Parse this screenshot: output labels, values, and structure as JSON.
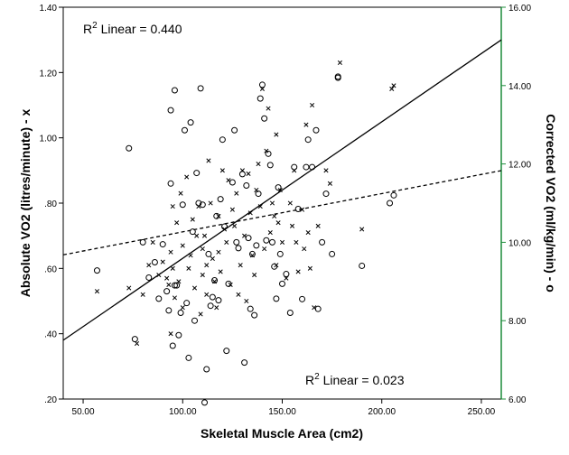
{
  "chart_data": {
    "type": "scatter",
    "xlabel": "Skeletal Muscle Area (cm2)",
    "ylabel_left": "Absolute VO2 (litres/minute) - x",
    "ylabel_right": "Corrected VO2 (ml/kg/min) - o",
    "xlim": [
      40,
      260
    ],
    "ylim_left": [
      0.2,
      1.4
    ],
    "ylim_right": [
      6.0,
      16.0
    ],
    "x_ticks": [
      "50.00",
      "100.00",
      "150.00",
      "200.00",
      "250.00"
    ],
    "x_tick_values": [
      50,
      100,
      150,
      200,
      250
    ],
    "y_left_ticks": [
      ".20",
      ".40",
      ".60",
      ".80",
      "1.00",
      "1.20",
      "1.40"
    ],
    "y_left_tick_values": [
      0.2,
      0.4,
      0.6,
      0.8,
      1.0,
      1.2,
      1.4
    ],
    "y_right_ticks": [
      "6.00",
      "8.00",
      "10.00",
      "12.00",
      "14.00",
      "16.00"
    ],
    "y_right_tick_values": [
      6,
      8,
      10,
      12,
      14,
      16
    ],
    "annotations": {
      "left_r2": {
        "prefix": "R",
        "sup": "2",
        "text": " Linear = 0.440"
      },
      "right_r2": {
        "prefix": "R",
        "sup": "2",
        "text": " Linear = 0.023"
      }
    },
    "colors": {
      "left_axis": "#000000",
      "right_axis": "#1c8c3a",
      "marks": "#000000"
    },
    "series": [
      {
        "name": "Absolute VO2 (litres/minute)",
        "marker": "x",
        "axis": "left",
        "fit_line": {
          "style": "solid",
          "x": [
            40,
            260
          ],
          "y": [
            0.38,
            1.3
          ]
        },
        "points": [
          [
            57,
            0.53
          ],
          [
            73,
            0.54
          ],
          [
            77,
            0.37
          ],
          [
            80,
            0.52
          ],
          [
            83,
            0.61
          ],
          [
            85,
            0.68
          ],
          [
            88,
            0.58
          ],
          [
            90,
            0.62
          ],
          [
            92,
            0.57
          ],
          [
            93,
            0.55
          ],
          [
            94,
            0.65
          ],
          [
            94,
            0.4
          ],
          [
            95,
            0.79
          ],
          [
            95,
            0.6
          ],
          [
            96,
            0.51
          ],
          [
            97,
            0.74
          ],
          [
            98,
            0.56
          ],
          [
            99,
            0.83
          ],
          [
            100,
            0.67
          ],
          [
            100,
            0.48
          ],
          [
            102,
            0.88
          ],
          [
            103,
            0.6
          ],
          [
            104,
            0.64
          ],
          [
            105,
            0.75
          ],
          [
            106,
            0.54
          ],
          [
            107,
            0.7
          ],
          [
            108,
            0.79
          ],
          [
            109,
            0.46
          ],
          [
            110,
            0.58
          ],
          [
            110,
            0.66
          ],
          [
            111,
            0.7
          ],
          [
            112,
            0.61
          ],
          [
            112,
            0.52
          ],
          [
            113,
            0.93
          ],
          [
            114,
            0.8
          ],
          [
            115,
            0.63
          ],
          [
            116,
            0.56
          ],
          [
            117,
            0.48
          ],
          [
            118,
            0.76
          ],
          [
            118,
            0.65
          ],
          [
            119,
            0.59
          ],
          [
            120,
            0.9
          ],
          [
            121,
            0.72
          ],
          [
            122,
            0.68
          ],
          [
            123,
            0.87
          ],
          [
            124,
            0.55
          ],
          [
            125,
            0.78
          ],
          [
            126,
            0.73
          ],
          [
            127,
            0.83
          ],
          [
            128,
            0.52
          ],
          [
            129,
            0.61
          ],
          [
            130,
            0.9
          ],
          [
            131,
            0.7
          ],
          [
            132,
            0.5
          ],
          [
            133,
            0.89
          ],
          [
            134,
            0.77
          ],
          [
            135,
            0.64
          ],
          [
            136,
            0.58
          ],
          [
            137,
            0.84
          ],
          [
            138,
            0.92
          ],
          [
            139,
            0.79
          ],
          [
            140,
            1.15
          ],
          [
            141,
            0.66
          ],
          [
            142,
            0.96
          ],
          [
            143,
            1.09
          ],
          [
            144,
            0.71
          ],
          [
            145,
            0.8
          ],
          [
            146,
            0.76
          ],
          [
            147,
            0.61
          ],
          [
            147,
            1.01
          ],
          [
            148,
            0.74
          ],
          [
            149,
            0.84
          ],
          [
            150,
            0.68
          ],
          [
            152,
            0.57
          ],
          [
            154,
            0.8
          ],
          [
            155,
            0.73
          ],
          [
            156,
            0.9
          ],
          [
            157,
            0.68
          ],
          [
            158,
            0.59
          ],
          [
            160,
            0.78
          ],
          [
            161,
            0.66
          ],
          [
            162,
            1.04
          ],
          [
            163,
            0.71
          ],
          [
            164,
            0.6
          ],
          [
            165,
            1.1
          ],
          [
            166,
            0.48
          ],
          [
            168,
            0.73
          ],
          [
            172,
            0.9
          ],
          [
            174,
            0.86
          ],
          [
            179,
            1.23
          ],
          [
            190,
            0.72
          ],
          [
            205,
            1.15
          ],
          [
            206,
            1.16
          ]
        ]
      },
      {
        "name": "Corrected VO2 (ml/kg/min)",
        "marker": "o",
        "axis": "right",
        "fit_line": {
          "style": "dashed",
          "x": [
            40,
            260
          ],
          "y": [
            9.68,
            11.83
          ]
        },
        "points": [
          [
            57,
            9.28
          ],
          [
            73,
            12.4
          ],
          [
            76,
            7.53
          ],
          [
            80,
            10.0
          ],
          [
            83,
            9.1
          ],
          [
            86,
            9.49
          ],
          [
            88,
            8.56
          ],
          [
            90,
            9.95
          ],
          [
            92,
            8.75
          ],
          [
            93,
            8.26
          ],
          [
            94,
            13.37
          ],
          [
            94,
            11.5
          ],
          [
            95,
            7.36
          ],
          [
            96,
            13.88
          ],
          [
            96,
            8.9
          ],
          [
            97,
            8.9
          ],
          [
            98,
            7.63
          ],
          [
            99,
            8.2
          ],
          [
            100,
            10.96
          ],
          [
            101,
            12.86
          ],
          [
            102,
            8.45
          ],
          [
            103,
            7.05
          ],
          [
            104,
            13.06
          ],
          [
            105,
            10.27
          ],
          [
            106,
            8.0
          ],
          [
            107,
            11.77
          ],
          [
            108,
            11.0
          ],
          [
            109,
            13.93
          ],
          [
            110,
            10.96
          ],
          [
            111,
            5.91
          ],
          [
            112,
            6.76
          ],
          [
            113,
            9.7
          ],
          [
            114,
            8.38
          ],
          [
            115,
            8.6
          ],
          [
            116,
            9.03
          ],
          [
            117,
            10.67
          ],
          [
            118,
            8.52
          ],
          [
            119,
            11.1
          ],
          [
            120,
            12.62
          ],
          [
            121,
            10.4
          ],
          [
            122,
            7.23
          ],
          [
            123,
            8.94
          ],
          [
            125,
            11.53
          ],
          [
            126,
            12.86
          ],
          [
            127,
            10.0
          ],
          [
            128,
            9.85
          ],
          [
            130,
            11.74
          ],
          [
            131,
            6.93
          ],
          [
            132,
            11.45
          ],
          [
            133,
            10.11
          ],
          [
            134,
            8.3
          ],
          [
            135,
            9.7
          ],
          [
            136,
            8.14
          ],
          [
            137,
            9.92
          ],
          [
            138,
            11.24
          ],
          [
            139,
            13.67
          ],
          [
            140,
            14.02
          ],
          [
            141,
            13.16
          ],
          [
            142,
            10.05
          ],
          [
            143,
            12.26
          ],
          [
            144,
            11.97
          ],
          [
            145,
            10.0
          ],
          [
            146,
            9.38
          ],
          [
            147,
            8.56
          ],
          [
            148,
            11.4
          ],
          [
            149,
            9.7
          ],
          [
            150,
            8.94
          ],
          [
            152,
            9.19
          ],
          [
            154,
            8.2
          ],
          [
            156,
            11.92
          ],
          [
            158,
            10.85
          ],
          [
            160,
            8.55
          ],
          [
            162,
            11.92
          ],
          [
            163,
            12.62
          ],
          [
            165,
            11.92
          ],
          [
            167,
            12.86
          ],
          [
            168,
            8.3
          ],
          [
            170,
            10.0
          ],
          [
            172,
            11.24
          ],
          [
            175,
            9.7
          ],
          [
            178,
            14.2
          ],
          [
            190,
            9.4
          ],
          [
            204,
            11.0
          ],
          [
            206,
            11.2
          ],
          [
            178,
            14.23
          ]
        ]
      }
    ]
  }
}
